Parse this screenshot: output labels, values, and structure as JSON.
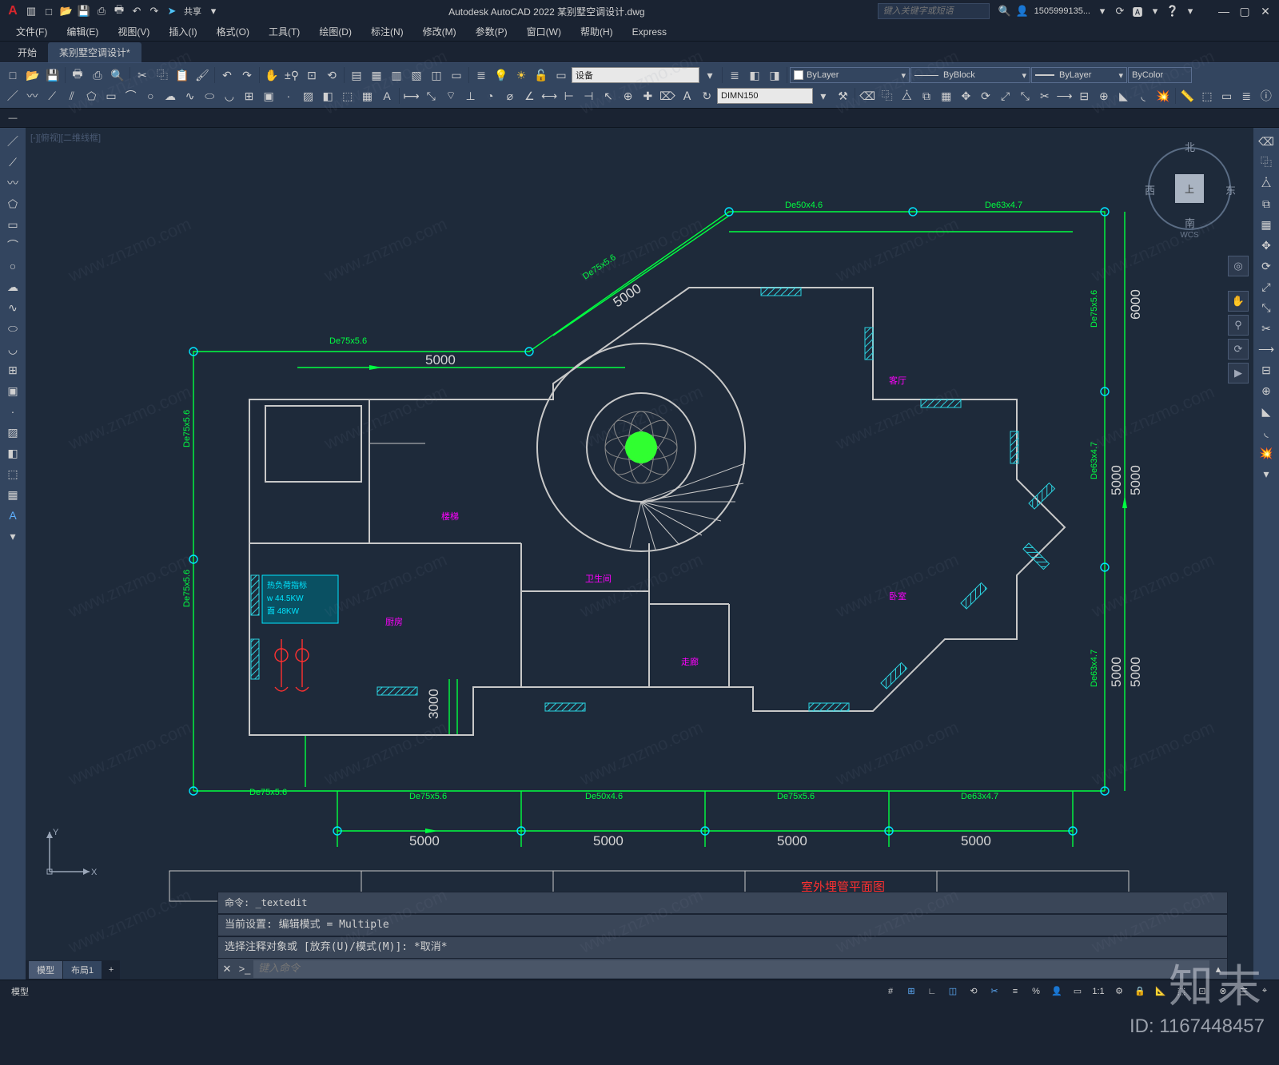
{
  "app": {
    "logo": "A",
    "title": "Autodesk AutoCAD 2022   某别墅空调设计.dwg",
    "search_placeholder": "键入关键字或短语",
    "user": "1505999135...",
    "qat_icons": [
      "file",
      "new",
      "open",
      "save",
      "saveas",
      "print",
      "undo",
      "redo",
      "send",
      "share"
    ],
    "share_label": "共享"
  },
  "menus": [
    "文件(F)",
    "编辑(E)",
    "视图(V)",
    "插入(I)",
    "格式(O)",
    "工具(T)",
    "绘图(D)",
    "标注(N)",
    "修改(M)",
    "参数(P)",
    "窗口(W)",
    "帮助(H)",
    "Express"
  ],
  "ribbon": {
    "tabs": [
      "开始",
      "某别墅空调设计*"
    ],
    "active_tab": 1,
    "dimstyle": "DIMN150",
    "layer_text": "设备",
    "layer_dd": "ByLayer",
    "ltype_dd": "ByBlock",
    "lweight_dd": "ByLayer",
    "color_dd": "ByColor"
  },
  "file_tab": {
    "name": "某别墅空调设计*",
    "plus": "+"
  },
  "canvas": {
    "viewport_label": "[-][俯视][二维线框]",
    "viewcube": {
      "n": "北",
      "s": "南",
      "e": "东",
      "w": "西",
      "top": "上",
      "wcs": "WCS"
    },
    "drawing_title": "室外埋管平面图",
    "drawing": {
      "background": "#1e2a3a",
      "wall_stroke": "#c8c8c8",
      "pipe_stroke": "#00ff41",
      "node_stroke": "#00e5ff",
      "dim_color": "#b8c0cc",
      "hatch_color": "#2bd3e0",
      "magenta": "#ff00ff",
      "room_box": {
        "stroke": "#00e5ff",
        "fill": "#0a5062"
      },
      "room_box_lines": [
        "热负荷指标",
        "w 44.5KW",
        "面 48KW"
      ],
      "pipe_labels": [
        "De75x5.6",
        "De75x5.6",
        "De75x5.6",
        "De75x5.6",
        "De75x5.6",
        "De75x5.6",
        "De75x5.6",
        "De75x5.6",
        "De50x4.6",
        "De50x4.6",
        "De63x4.7",
        "De63x4.7",
        "De63x4.7",
        "De63x4.7"
      ],
      "dim_values": [
        "5000",
        "5000",
        "5000",
        "5000",
        "5000",
        "5000",
        "5000",
        "5000",
        "5000",
        "5000",
        "3000",
        "6000"
      ],
      "room_labels": [
        "楼梯",
        "走廊",
        "厨房",
        "客厅",
        "卧室",
        "卫生间"
      ],
      "equip_fill": "#30ff30"
    }
  },
  "command": {
    "hist1": "命令: _textedit",
    "hist2": "当前设置: 编辑模式 = Multiple",
    "hist3": "选择注释对象或 [放弃(U)/模式(M)]: *取消*",
    "close_icon": "✕",
    "chevron": ">_",
    "input_placeholder": "键入命令"
  },
  "model_tabs": {
    "model": "模型",
    "layout": "布局1",
    "plus": "+"
  },
  "status": {
    "left_label": "模型",
    "scale": "1:1",
    "items": [
      "#",
      "⊞",
      "∟",
      "◫",
      "⟲",
      "✂",
      "≡",
      "%",
      "👤",
      "⚙",
      "🔒",
      "📐",
      "⬚",
      "⊡",
      "⊗",
      "三",
      "⌖"
    ]
  },
  "brand": {
    "zh": "知末",
    "id_label": "ID: 1167448457"
  },
  "watermark_text": "www.znzmo.com"
}
